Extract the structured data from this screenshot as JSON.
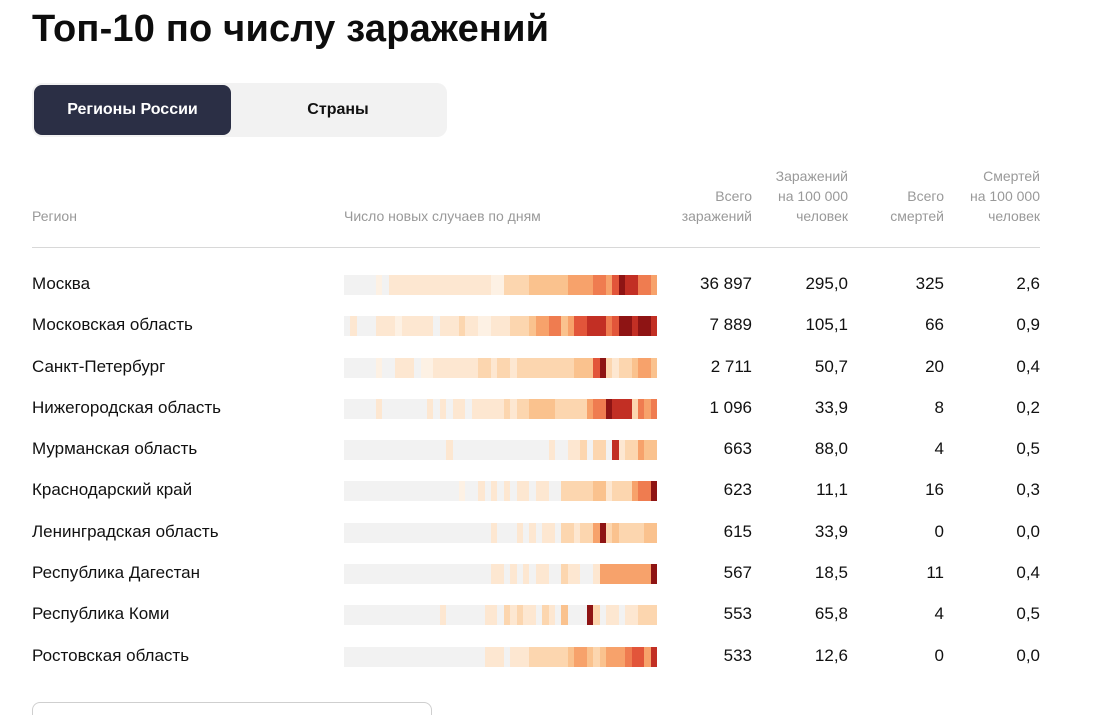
{
  "title": "Топ-10 по числу заражений",
  "tabs": [
    {
      "label": "Регионы России",
      "active": true
    },
    {
      "label": "Страны",
      "active": false
    }
  ],
  "table": {
    "headers": {
      "region": "Регион",
      "new_cases": "Число новых случаев по дням",
      "total_cases": [
        "Всего",
        "заражений"
      ],
      "cases_per_100k": [
        "Заражений",
        "на 100 000",
        "человек"
      ],
      "total_deaths": [
        "Всего",
        "смертей"
      ],
      "deaths_per_100k": [
        "Смертей",
        "на 100 000",
        "человек"
      ]
    },
    "rows": [
      {
        "region": "Москва",
        "total_cases": "36 897",
        "cases_per_100k": "295,0",
        "total_deaths": "325",
        "deaths_per_100k": "2,6",
        "heat": "0000010222222222222222211333344444455556657988665"
      },
      {
        "region": "Московская область",
        "total_cases": "7 889",
        "cases_per_100k": "105,1",
        "total_deaths": "66",
        "deaths_per_100k": "0,9",
        "heat": "0200022212222202223221122233345566457788867998998"
      },
      {
        "region": "Санкт-Петербург",
        "total_cases": "2 711",
        "cases_per_100k": "50,7",
        "total_deaths": "20",
        "deaths_per_100k": "0,4",
        "heat": "0000010022201122222223323323333333334447932334554"
      },
      {
        "region": "Нижегородская область",
        "total_cases": "1 096",
        "cases_per_100k": "33,9",
        "total_deaths": "8",
        "deaths_per_100k": "0,2",
        "heat": "0000020000000202022022222323344443333356698883656"
      },
      {
        "region": "Мурманская область",
        "total_cases": "663",
        "cases_per_100k": "88,0",
        "total_deaths": "4",
        "deaths_per_100k": "0,5",
        "heat": "0000000000000000200000000000000020022303308233544"
      },
      {
        "region": "Краснодарский край",
        "total_cases": "623",
        "cases_per_100k": "11,1",
        "total_deaths": "16",
        "deaths_per_100k": "0,3",
        "heat": "0000000000000000001002020202202200333334423335669"
      },
      {
        "region": "Ленинградская область",
        "total_cases": "615",
        "cases_per_100k": "33,9",
        "total_deaths": "0",
        "deaths_per_100k": "0,0",
        "heat": "0000000000000000000000020002020220332335934333344"
      },
      {
        "region": "Республика Дагестан",
        "total_cases": "567",
        "cases_per_100k": "18,5",
        "total_deaths": "11",
        "deaths_per_100k": "0,4",
        "heat": "0000000000000000000000022020202200322002555555559"
      },
      {
        "region": "Республика Коми",
        "total_cases": "553",
        "cases_per_100k": "65,8",
        "total_deaths": "4",
        "deaths_per_100k": "0,5",
        "heat": "0000000000000002000000220323220320400093022022333"
      },
      {
        "region": "Ростовская область",
        "total_cases": "533",
        "cases_per_100k": "12,6",
        "total_deaths": "0",
        "deaths_per_100k": "0,0",
        "heat": "0000000000000000000000222022233333345543455567758"
      }
    ]
  },
  "heat_palette": [
    "#f2f2f2",
    "#fdf1e4",
    "#fde7d1",
    "#fcd6af",
    "#fac28e",
    "#f7a26b",
    "#ef7c50",
    "#e2553a",
    "#c22f24",
    "#8e1414"
  ]
}
